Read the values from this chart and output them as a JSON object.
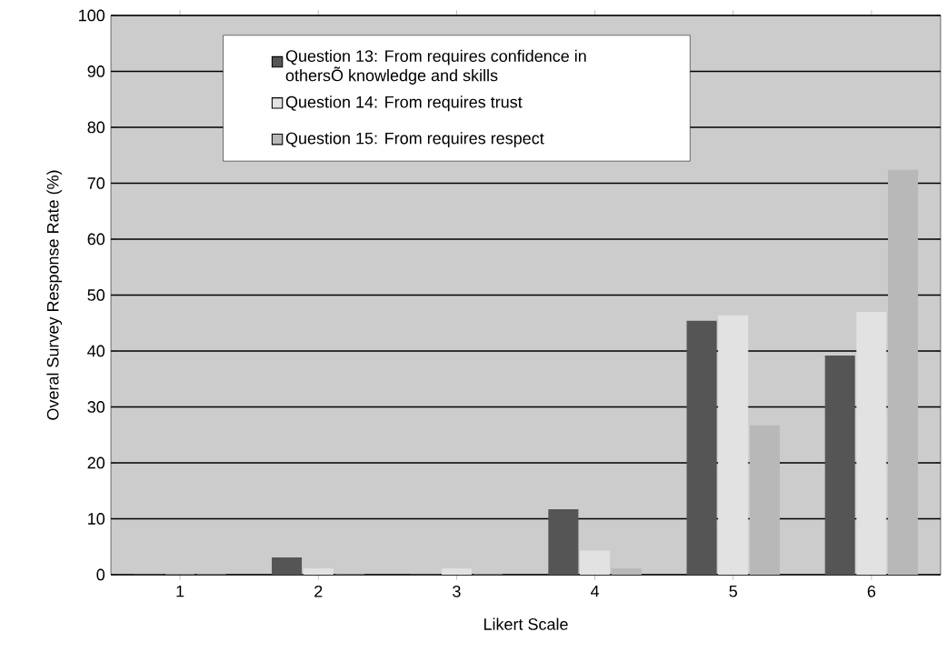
{
  "chart_data": {
    "type": "bar",
    "xlabel": "Likert Scale",
    "ylabel": "Overal Survey Response Rate (%)",
    "categories": [
      "1",
      "2",
      "3",
      "4",
      "5",
      "6"
    ],
    "series": [
      {
        "name": "Question 13: From requires confidence in othersÕ knowledge and skills",
        "color": "#555555",
        "values": [
          0,
          3,
          0,
          11.6,
          45.3,
          39.1
        ]
      },
      {
        "name": "Question 14: From requires trust",
        "color": "#e2e2e2",
        "values": [
          0,
          1,
          1,
          4.2,
          46.3,
          46.9
        ]
      },
      {
        "name": "Question 15: From requires respect",
        "color": "#b8b8b8",
        "values": [
          0,
          0,
          0,
          1,
          26.6,
          72.3
        ]
      }
    ],
    "ylim": [
      0,
      100
    ],
    "yticks": [
      0,
      10,
      20,
      30,
      40,
      50,
      60,
      70,
      80,
      90,
      100
    ],
    "grid": "y",
    "legend": "top"
  }
}
